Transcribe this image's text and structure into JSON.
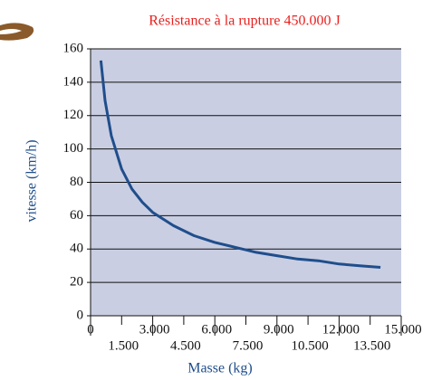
{
  "chart_data": {
    "type": "line",
    "title": "Résistance à la rupture 450.000 J",
    "x_label": "Masse (kg)",
    "y_label": "vitesse (km/h)",
    "x": [
      500,
      700,
      1000,
      1500,
      2000,
      2500,
      3000,
      4000,
      5000,
      6000,
      7000,
      8000,
      9000,
      10000,
      11000,
      12000,
      13000,
      14000
    ],
    "series": [
      {
        "color": "#1f4e8c",
        "values": [
          153,
          129,
          108,
          88,
          76,
          68,
          62,
          54,
          48,
          44,
          41,
          38,
          36,
          34,
          33,
          31,
          30,
          29
        ]
      }
    ],
    "xlim": [
      0,
      15000
    ],
    "xticks": [
      0,
      {
        "value": 1500,
        "label": "1.500"
      },
      {
        "value": 3000,
        "label": "3.000"
      },
      {
        "value": 4500,
        "label": "4.500"
      },
      {
        "value": 6000,
        "label": "6.000"
      },
      {
        "value": 7500,
        "label": "7.500"
      },
      {
        "value": 9000,
        "label": "9.000"
      },
      {
        "value": 10500,
        "label": "10.500"
      },
      {
        "value": 12000,
        "label": "12.000"
      },
      {
        "value": 13500,
        "label": "13.500"
      },
      {
        "value": 15000,
        "label": "15.000"
      }
    ],
    "ylim": [
      0,
      160
    ],
    "yticks": [
      0,
      20,
      40,
      60,
      80,
      100,
      120,
      140,
      160
    ],
    "grid": true,
    "plot_background": "#c9cee2"
  }
}
